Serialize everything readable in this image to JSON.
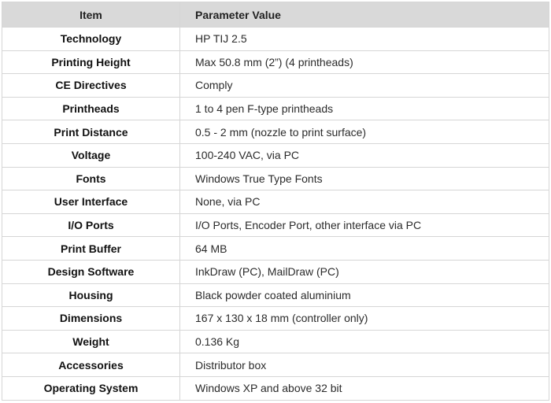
{
  "header": {
    "item": "Item",
    "value": "Parameter Value"
  },
  "rows": [
    {
      "item": "Technology",
      "value": "HP TIJ 2.5"
    },
    {
      "item": "Printing Height",
      "value": "Max 50.8 mm (2”) (4 printheads)"
    },
    {
      "item": "CE Directives",
      "value": "Comply"
    },
    {
      "item": "Printheads",
      "value": "1 to 4 pen F-type printheads"
    },
    {
      "item": "Print Distance",
      "value": "0.5 - 2 mm (nozzle to print surface)"
    },
    {
      "item": "Voltage",
      "value": "100-240 VAC, via PC"
    },
    {
      "item": "Fonts",
      "value": "Windows True Type Fonts"
    },
    {
      "item": "User Interface",
      "value": "None, via PC"
    },
    {
      "item": "I/O Ports",
      "value": "I/O Ports, Encoder Port, other interface via PC"
    },
    {
      "item": "Print Buffer",
      "value": "64 MB"
    },
    {
      "item": "Design Software",
      "value": "InkDraw (PC), MailDraw (PC)"
    },
    {
      "item": "Housing",
      "value": "Black powder coated aluminium"
    },
    {
      "item": "Dimensions",
      "value": "167 x 130 x 18 mm (controller only)"
    },
    {
      "item": "Weight",
      "value": "0.136 Kg"
    },
    {
      "item": "Accessories",
      "value": "Distributor box"
    },
    {
      "item": "Operating System",
      "value": "Windows XP and above 32 bit"
    }
  ]
}
